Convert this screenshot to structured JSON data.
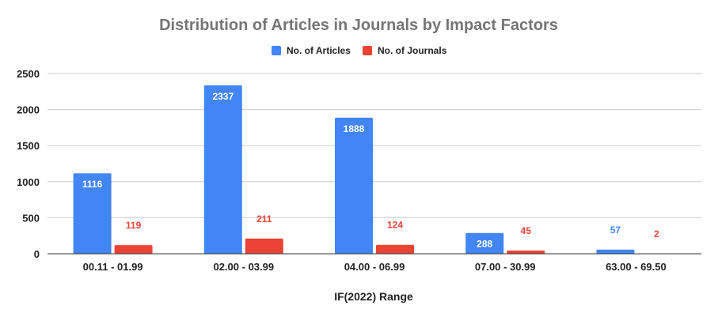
{
  "chart_data": {
    "type": "bar",
    "title": "Distribution of Articles in Journals by Impact Factors",
    "xlabel": "IF(2022) Range",
    "ylabel": "",
    "categories": [
      "00.11 - 01.99",
      "02.00 - 03.99",
      "04.00 - 06.99",
      "07.00 - 30.99",
      "63.00 - 69.50"
    ],
    "ylim": [
      0,
      2500
    ],
    "yticks": [
      "0",
      "500",
      "1000",
      "1500",
      "2000",
      "2500"
    ],
    "grid": true,
    "legend_position": "top",
    "series": [
      {
        "name": "No. of Articles",
        "color": "#4285f4",
        "values": [
          1116,
          2337,
          1888,
          288,
          57
        ]
      },
      {
        "name": "No. of Journals",
        "color": "#ea4335",
        "values": [
          119,
          211,
          124,
          45,
          2
        ]
      }
    ]
  }
}
